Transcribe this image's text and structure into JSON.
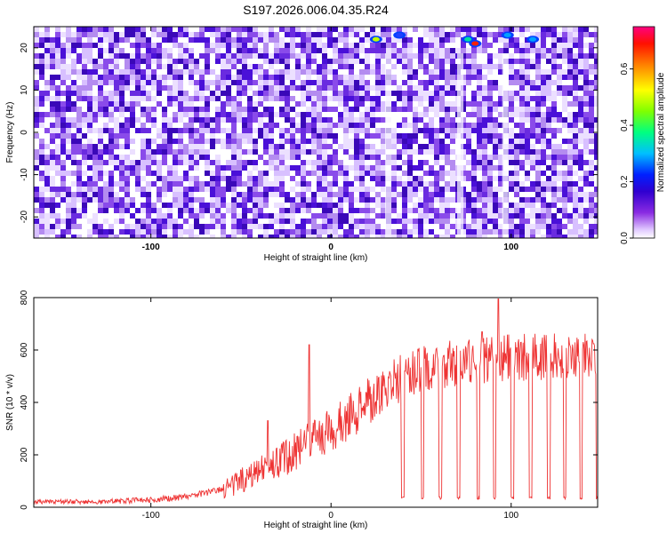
{
  "title": "S197.2026.006.04.35.R24",
  "chart_data": [
    {
      "type": "heatmap",
      "xlabel": "Height of straight line (km)",
      "ylabel": "Frequency (Hz)",
      "xlim": [
        -165,
        148
      ],
      "ylim": [
        -25,
        25
      ],
      "x_ticks": [
        -100,
        0,
        100
      ],
      "y_ticks": [
        20,
        10,
        0,
        -10,
        -20
      ],
      "colorbar": {
        "label": "Normalized spectral amplitude",
        "range": [
          0.0,
          0.75
        ],
        "ticks": [
          0.0,
          0.2,
          0.4,
          0.6
        ],
        "colors": [
          "#ffffff",
          "#e6ccff",
          "#7a22ff",
          "#3300cc",
          "#0000ff",
          "#00c8ff",
          "#00ff80",
          "#a0ff00",
          "#ffff00",
          "#ff8000",
          "#ff0000",
          "#ff0080"
        ]
      },
      "hotspots": [
        {
          "x": 25,
          "y": 22,
          "value": 0.55
        },
        {
          "x": 80,
          "y": 21,
          "value": 0.75
        },
        {
          "x": 76,
          "y": 22,
          "value": 0.35
        },
        {
          "x": 112,
          "y": 22,
          "value": 0.3
        },
        {
          "x": 98,
          "y": 23,
          "value": 0.25
        },
        {
          "x": 38,
          "y": 23,
          "value": 0.2
        }
      ],
      "grid": false,
      "legend": "none"
    },
    {
      "type": "line",
      "xlabel": "Height of straight line (km)",
      "ylabel": "SNR (10 * v/v)",
      "xlim": [
        -165,
        148
      ],
      "ylim": [
        0,
        800
      ],
      "x_ticks": [
        -100,
        0,
        100
      ],
      "y_ticks": [
        0,
        200,
        400,
        600,
        800
      ],
      "color": "#ee3333",
      "series": [
        {
          "trend_x": [
            -165,
            -120,
            -100,
            -80,
            -60,
            -50,
            -40,
            -30,
            -20,
            -10,
            0,
            10,
            20,
            30,
            40,
            50,
            60,
            80,
            100,
            120,
            148
          ],
          "trend_y": [
            20,
            22,
            28,
            40,
            70,
            100,
            140,
            170,
            210,
            260,
            300,
            340,
            400,
            450,
            500,
            530,
            540,
            560,
            570,
            575,
            580
          ],
          "spikes": [
            {
              "x": -12,
              "y": 620
            },
            {
              "x": -35,
              "y": 330
            },
            {
              "x": 93,
              "y": 795
            },
            {
              "x": 84,
              "y": 670
            }
          ],
          "dropouts_x": [
            39,
            50,
            60,
            70,
            81,
            90,
            100,
            110,
            120,
            129,
            138,
            147
          ],
          "dropout_floor": 30
        }
      ],
      "grid": false,
      "legend": "none"
    }
  ]
}
